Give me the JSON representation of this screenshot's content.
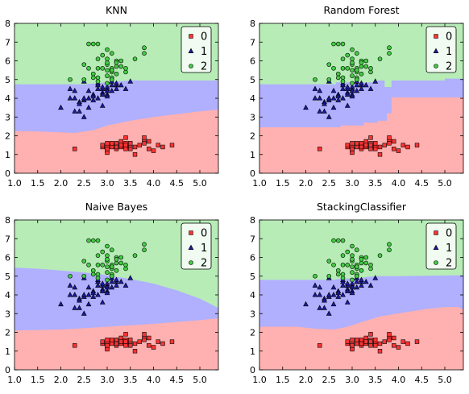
{
  "colors": {
    "class0": "#ffb0b0",
    "class1": "#b0b0ff",
    "class2": "#b7ecb7",
    "marker0": "#ff3333",
    "marker1": "#1a1aa0",
    "marker2": "#44cc44"
  },
  "chart_data": [
    {
      "type": "scatter",
      "title": "KNN",
      "xlim": [
        1.0,
        5.4
      ],
      "ylim": [
        0,
        8
      ],
      "xticks": [
        "1.0",
        "1.5",
        "2.0",
        "2.5",
        "3.0",
        "3.5",
        "4.0",
        "4.5",
        "5.0"
      ],
      "yticks": [
        "0",
        "1",
        "2",
        "3",
        "4",
        "5",
        "6",
        "7",
        "8"
      ],
      "legend": {
        "position": "top-right",
        "entries": [
          "0",
          "1",
          "2"
        ]
      },
      "regions": {
        "lower": [
          [
            1.0,
            2.25
          ],
          [
            1.3,
            2.25
          ],
          [
            1.8,
            2.2
          ],
          [
            2.3,
            2.15
          ],
          [
            2.7,
            2.3
          ],
          [
            3.0,
            2.55
          ],
          [
            3.5,
            2.8
          ],
          [
            4.0,
            3.0
          ],
          [
            4.5,
            3.15
          ],
          [
            5.0,
            3.3
          ],
          [
            5.4,
            3.4
          ]
        ],
        "upper": [
          [
            1.0,
            4.75
          ],
          [
            2.5,
            4.75
          ],
          [
            3.0,
            4.85
          ],
          [
            3.5,
            4.95
          ],
          [
            4.0,
            4.95
          ],
          [
            5.4,
            4.95
          ]
        ]
      }
    },
    {
      "type": "scatter",
      "title": "Random Forest",
      "xlim": [
        1.0,
        5.4
      ],
      "ylim": [
        0,
        8
      ],
      "xticks": [
        "1.0",
        "1.5",
        "2.0",
        "2.5",
        "3.0",
        "3.5",
        "4.0",
        "4.5",
        "5.0"
      ],
      "yticks": [
        "0",
        "1",
        "2",
        "3",
        "4",
        "5",
        "6",
        "7",
        "8"
      ],
      "legend": {
        "position": "top-right",
        "entries": [
          "0",
          "1",
          "2"
        ]
      },
      "regions": {
        "lower": [
          [
            1.0,
            2.45
          ],
          [
            2.75,
            2.45
          ],
          [
            2.75,
            2.55
          ],
          [
            3.25,
            2.55
          ],
          [
            3.25,
            2.7
          ],
          [
            3.55,
            2.7
          ],
          [
            3.55,
            2.8
          ],
          [
            3.75,
            2.8
          ],
          [
            3.75,
            3.2
          ],
          [
            3.85,
            3.2
          ],
          [
            3.85,
            4.05
          ],
          [
            5.4,
            4.05
          ]
        ],
        "upper": [
          [
            1.0,
            4.75
          ],
          [
            2.65,
            4.75
          ],
          [
            2.65,
            4.85
          ],
          [
            3.55,
            4.85
          ],
          [
            3.55,
            4.95
          ],
          [
            3.7,
            4.95
          ],
          [
            3.7,
            4.6
          ],
          [
            3.85,
            4.6
          ],
          [
            3.85,
            4.95
          ],
          [
            5.0,
            4.95
          ],
          [
            5.0,
            5.05
          ],
          [
            5.4,
            5.05
          ]
        ]
      }
    },
    {
      "type": "scatter",
      "title": "Naive Bayes",
      "xlim": [
        1.0,
        5.4
      ],
      "ylim": [
        0,
        8
      ],
      "xticks": [
        "1.0",
        "1.5",
        "2.0",
        "2.5",
        "3.0",
        "3.5",
        "4.0",
        "4.5",
        "5.0"
      ],
      "yticks": [
        "0",
        "1",
        "2",
        "3",
        "4",
        "5",
        "6",
        "7",
        "8"
      ],
      "legend": {
        "position": "top-right",
        "entries": [
          "0",
          "1",
          "2"
        ]
      },
      "regions": {
        "lower": [
          [
            1.0,
            2.1
          ],
          [
            2.0,
            2.15
          ],
          [
            3.0,
            2.3
          ],
          [
            4.0,
            2.45
          ],
          [
            5.0,
            2.65
          ],
          [
            5.4,
            2.75
          ]
        ],
        "upper": [
          [
            1.0,
            5.45
          ],
          [
            1.5,
            5.4
          ],
          [
            2.0,
            5.3
          ],
          [
            2.5,
            5.2
          ],
          [
            3.0,
            5.05
          ],
          [
            3.5,
            4.85
          ],
          [
            4.0,
            4.6
          ],
          [
            4.5,
            4.25
          ],
          [
            5.0,
            3.8
          ],
          [
            5.4,
            3.3
          ]
        ]
      }
    },
    {
      "type": "scatter",
      "title": "StackingClassifier",
      "xlim": [
        1.0,
        5.4
      ],
      "ylim": [
        0,
        8
      ],
      "xticks": [
        "1.0",
        "1.5",
        "2.0",
        "2.5",
        "3.0",
        "3.5",
        "4.0",
        "4.5",
        "5.0"
      ],
      "yticks": [
        "0",
        "1",
        "2",
        "3",
        "4",
        "5",
        "6",
        "7",
        "8"
      ],
      "legend": {
        "position": "top-right",
        "entries": [
          "0",
          "1",
          "2"
        ]
      },
      "regions": {
        "lower": [
          [
            1.0,
            2.3
          ],
          [
            1.8,
            2.3
          ],
          [
            2.2,
            2.2
          ],
          [
            2.6,
            2.15
          ],
          [
            2.9,
            2.3
          ],
          [
            3.2,
            2.55
          ],
          [
            3.6,
            2.85
          ],
          [
            4.1,
            3.05
          ],
          [
            4.6,
            3.25
          ],
          [
            5.0,
            3.35
          ],
          [
            5.3,
            3.35
          ],
          [
            5.4,
            3.2
          ]
        ],
        "upper": [
          [
            1.0,
            4.8
          ],
          [
            2.6,
            4.8
          ],
          [
            2.7,
            4.85
          ],
          [
            3.1,
            4.9
          ],
          [
            3.5,
            5.0
          ],
          [
            4.0,
            5.0
          ],
          [
            5.4,
            5.05
          ]
        ]
      }
    }
  ],
  "scatter_points": {
    "class0": [
      [
        2.3,
        1.3
      ],
      [
        2.9,
        1.4
      ],
      [
        2.9,
        1.5
      ],
      [
        3.0,
        1.4
      ],
      [
        3.0,
        1.2
      ],
      [
        3.0,
        1.6
      ],
      [
        3.0,
        1.1
      ],
      [
        3.1,
        1.5
      ],
      [
        3.1,
        1.4
      ],
      [
        3.2,
        1.3
      ],
      [
        3.2,
        1.5
      ],
      [
        3.2,
        1.6
      ],
      [
        3.3,
        1.4
      ],
      [
        3.3,
        1.7
      ],
      [
        3.3,
        1.5
      ],
      [
        3.4,
        1.4
      ],
      [
        3.4,
        1.6
      ],
      [
        3.4,
        1.9
      ],
      [
        3.4,
        1.3
      ],
      [
        3.5,
        1.4
      ],
      [
        3.5,
        1.3
      ],
      [
        3.5,
        1.6
      ],
      [
        3.6,
        1.0
      ],
      [
        3.6,
        1.4
      ],
      [
        3.7,
        1.5
      ],
      [
        3.8,
        1.7
      ],
      [
        3.8,
        1.9
      ],
      [
        3.8,
        1.6
      ],
      [
        3.9,
        1.3
      ],
      [
        3.9,
        1.7
      ],
      [
        4.0,
        1.2
      ],
      [
        4.1,
        1.5
      ],
      [
        4.2,
        1.4
      ],
      [
        4.4,
        1.5
      ],
      [
        3.0,
        1.3
      ],
      [
        3.4,
        1.5
      ],
      [
        3.1,
        1.6
      ],
      [
        3.2,
        1.4
      ]
    ],
    "class1": [
      [
        2.0,
        3.5
      ],
      [
        2.2,
        4.0
      ],
      [
        2.2,
        4.5
      ],
      [
        2.3,
        3.3
      ],
      [
        2.3,
        4.0
      ],
      [
        2.3,
        4.4
      ],
      [
        2.4,
        3.3
      ],
      [
        2.4,
        3.8
      ],
      [
        2.4,
        3.7
      ],
      [
        2.5,
        3.0
      ],
      [
        2.5,
        3.9
      ],
      [
        2.5,
        4.0
      ],
      [
        2.5,
        4.9
      ],
      [
        2.6,
        3.5
      ],
      [
        2.6,
        4.4
      ],
      [
        2.6,
        4.0
      ],
      [
        2.7,
        3.9
      ],
      [
        2.7,
        4.2
      ],
      [
        2.7,
        4.1
      ],
      [
        2.8,
        4.0
      ],
      [
        2.8,
        4.5
      ],
      [
        2.8,
        4.7
      ],
      [
        2.8,
        4.8
      ],
      [
        2.9,
        3.6
      ],
      [
        2.9,
        4.3
      ],
      [
        2.9,
        4.5
      ],
      [
        2.9,
        4.6
      ],
      [
        2.9,
        4.2
      ],
      [
        3.0,
        4.2
      ],
      [
        3.0,
        4.1
      ],
      [
        3.0,
        4.5
      ],
      [
        3.0,
        4.6
      ],
      [
        3.0,
        4.4
      ],
      [
        3.1,
        4.4
      ],
      [
        3.1,
        4.7
      ],
      [
        3.1,
        4.9
      ],
      [
        3.2,
        4.7
      ],
      [
        3.2,
        4.5
      ],
      [
        3.2,
        4.8
      ],
      [
        3.3,
        4.7
      ],
      [
        3.4,
        4.5
      ],
      [
        3.5,
        4.9
      ]
    ],
    "class2": [
      [
        2.5,
        5.0
      ],
      [
        2.5,
        5.8
      ],
      [
        2.6,
        5.6
      ],
      [
        2.7,
        5.3
      ],
      [
        2.7,
        5.1
      ],
      [
        2.8,
        5.6
      ],
      [
        2.8,
        6.1
      ],
      [
        2.8,
        4.9
      ],
      [
        2.8,
        5.1
      ],
      [
        2.8,
        6.9
      ],
      [
        2.9,
        5.6
      ],
      [
        3.0,
        5.8
      ],
      [
        3.0,
        5.5
      ],
      [
        3.0,
        5.2
      ],
      [
        3.0,
        6.6
      ],
      [
        3.0,
        4.8
      ],
      [
        3.0,
        5.9
      ],
      [
        3.0,
        6.1
      ],
      [
        3.1,
        5.4
      ],
      [
        3.1,
        5.1
      ],
      [
        3.1,
        5.6
      ],
      [
        3.1,
        5.5
      ],
      [
        3.1,
        6.4
      ],
      [
        3.2,
        5.7
      ],
      [
        3.2,
        5.3
      ],
      [
        3.2,
        6.0
      ],
      [
        3.2,
        5.9
      ],
      [
        3.3,
        5.7
      ],
      [
        3.3,
        6.0
      ],
      [
        3.4,
        5.4
      ],
      [
        3.4,
        5.6
      ],
      [
        3.6,
        6.1
      ],
      [
        3.8,
        6.4
      ],
      [
        3.8,
        6.7
      ],
      [
        2.2,
        5.0
      ],
      [
        2.7,
        6.9
      ],
      [
        3.1,
        5.0
      ],
      [
        2.9,
        6.3
      ],
      [
        2.6,
        6.9
      ]
    ]
  }
}
